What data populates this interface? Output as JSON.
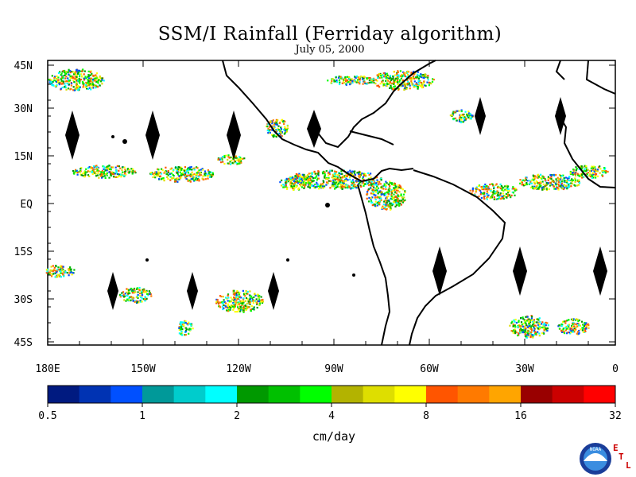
{
  "title": "SSM/I Rainfall (Ferriday algorithm)",
  "subtitle": "July 05, 2000",
  "lat_labels": [
    "45N",
    "30N",
    "15N",
    "EQ",
    "15S",
    "30S",
    "45S"
  ],
  "lon_labels": [
    "180E",
    "150W",
    "120W",
    "90W",
    "60W",
    "30W",
    "0"
  ],
  "colorbar": {
    "unit": "cm/day",
    "tick_labels": [
      "0.5",
      "1",
      "2",
      "4",
      "8",
      "16",
      "32"
    ],
    "colors": [
      "#001a80",
      "#0033b3",
      "#0050ff",
      "#009999",
      "#00cccc",
      "#00ffff",
      "#009900",
      "#00c000",
      "#00ff00",
      "#b3b300",
      "#dede00",
      "#ffff00",
      "#ff5500",
      "#ff7a00",
      "#ffa500",
      "#990000",
      "#cc0000",
      "#ff0000"
    ]
  },
  "logo": {
    "text": "NOAA",
    "letters": [
      "E",
      "T",
      "L"
    ]
  }
}
